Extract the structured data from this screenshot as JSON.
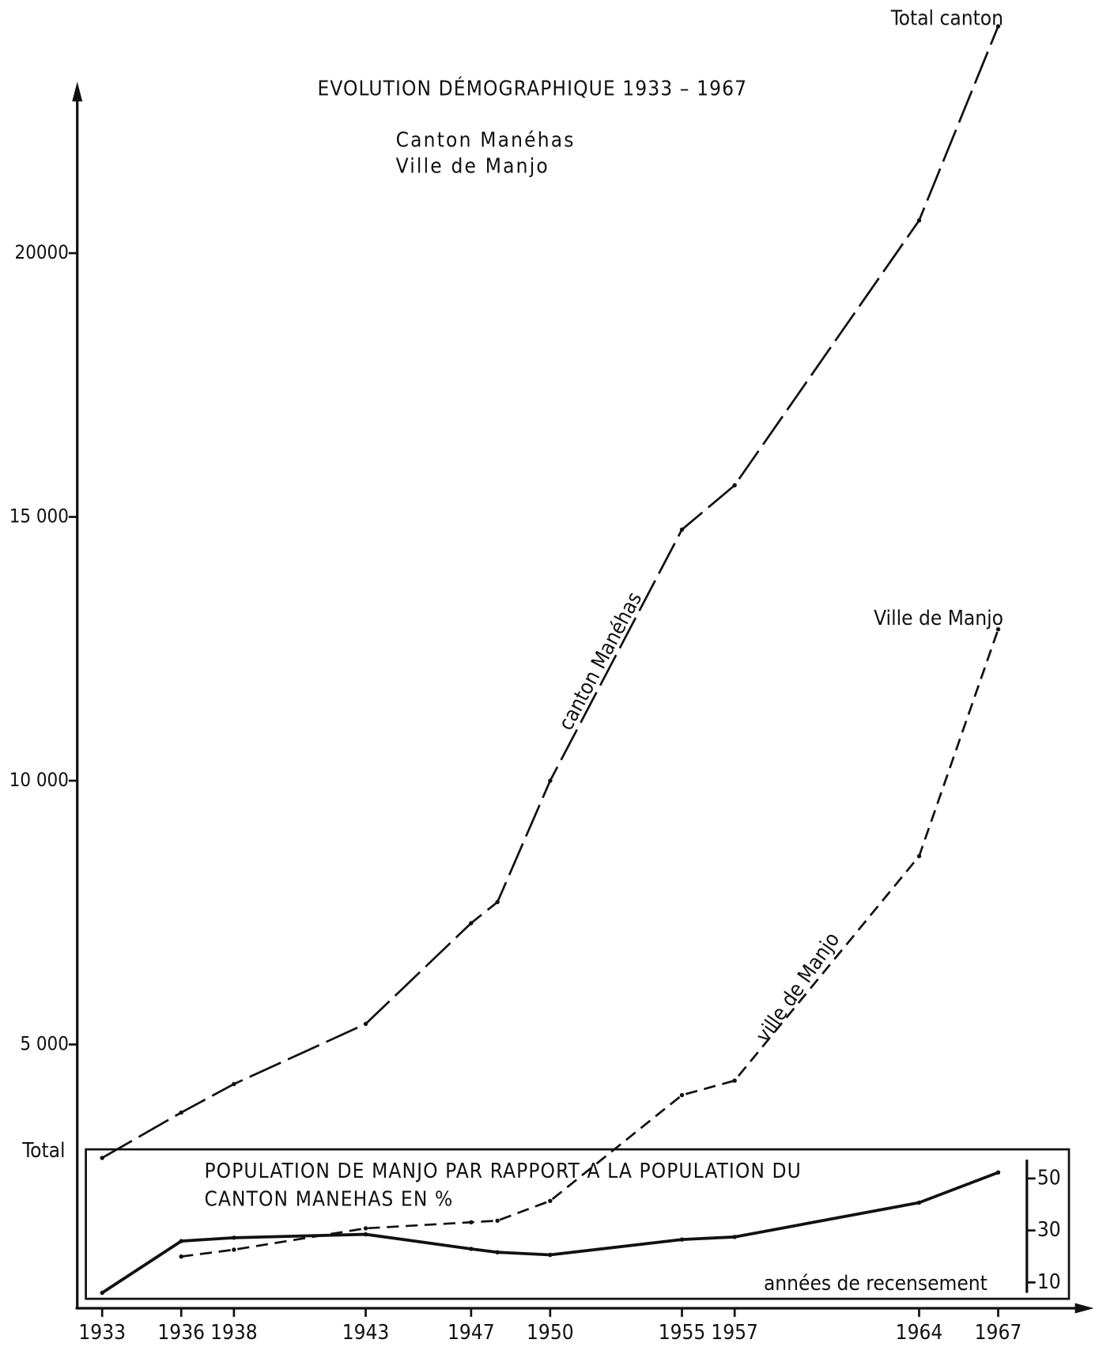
{
  "chart_data": {
    "type": "line",
    "title": "EVOLUTION DÉMOGRAPHIQUE 1933 – 1967",
    "subtitle": [
      "Canton Manéhas",
      "Ville de Manjo"
    ],
    "y_axis_label": "Total",
    "x_axis_label": "années de recensement",
    "inset_title": [
      "POPULATION DE MANJO PAR RAPPORT A LA POPULATION DU",
      "CANTON MANEHAS EN %"
    ],
    "annotations": [
      "canton Manéhas",
      "ville de Manjo"
    ],
    "x": [
      1933,
      1936,
      1938,
      1943,
      1947,
      1948,
      1950,
      1955,
      1957,
      1964,
      1967
    ],
    "series": [
      {
        "name": "Total canton",
        "color": "#111111",
        "dash": "40 9",
        "values": [
          2850,
          3710,
          4250,
          5390,
          7300,
          7700,
          10000,
          14760,
          15600,
          20620,
          24300
        ]
      },
      {
        "name": "Ville de Manjo",
        "color": "#111111",
        "dash": "14 8",
        "values": [
          null,
          980,
          1110,
          1515,
          1630,
          1660,
          2035,
          4040,
          4315,
          8570,
          12870
        ]
      },
      {
        "color": "#111111",
        "axis": "y2",
        "values": [
          6,
          25.9,
          27.2,
          28.5,
          22.9,
          21.6,
          20.6,
          26.5,
          27.5,
          40.7,
          52.3
        ]
      }
    ],
    "xlim": [
      1932,
      1970.5
    ],
    "xticks": [
      1933,
      1936,
      1938,
      1943,
      1947,
      1950,
      1955,
      1957,
      1964,
      1967
    ],
    "ylim": [
      0,
      23250
    ],
    "yticks": [
      {
        "value": 5000,
        "label": "5 000"
      },
      {
        "value": 10000,
        "label": "10 000"
      },
      {
        "value": 15000,
        "label": "15 000"
      },
      {
        "value": 20000,
        "label": "20000"
      }
    ],
    "y2lim": [
      3.7,
      61.2
    ],
    "y2ticks": [
      10,
      30,
      50
    ]
  }
}
